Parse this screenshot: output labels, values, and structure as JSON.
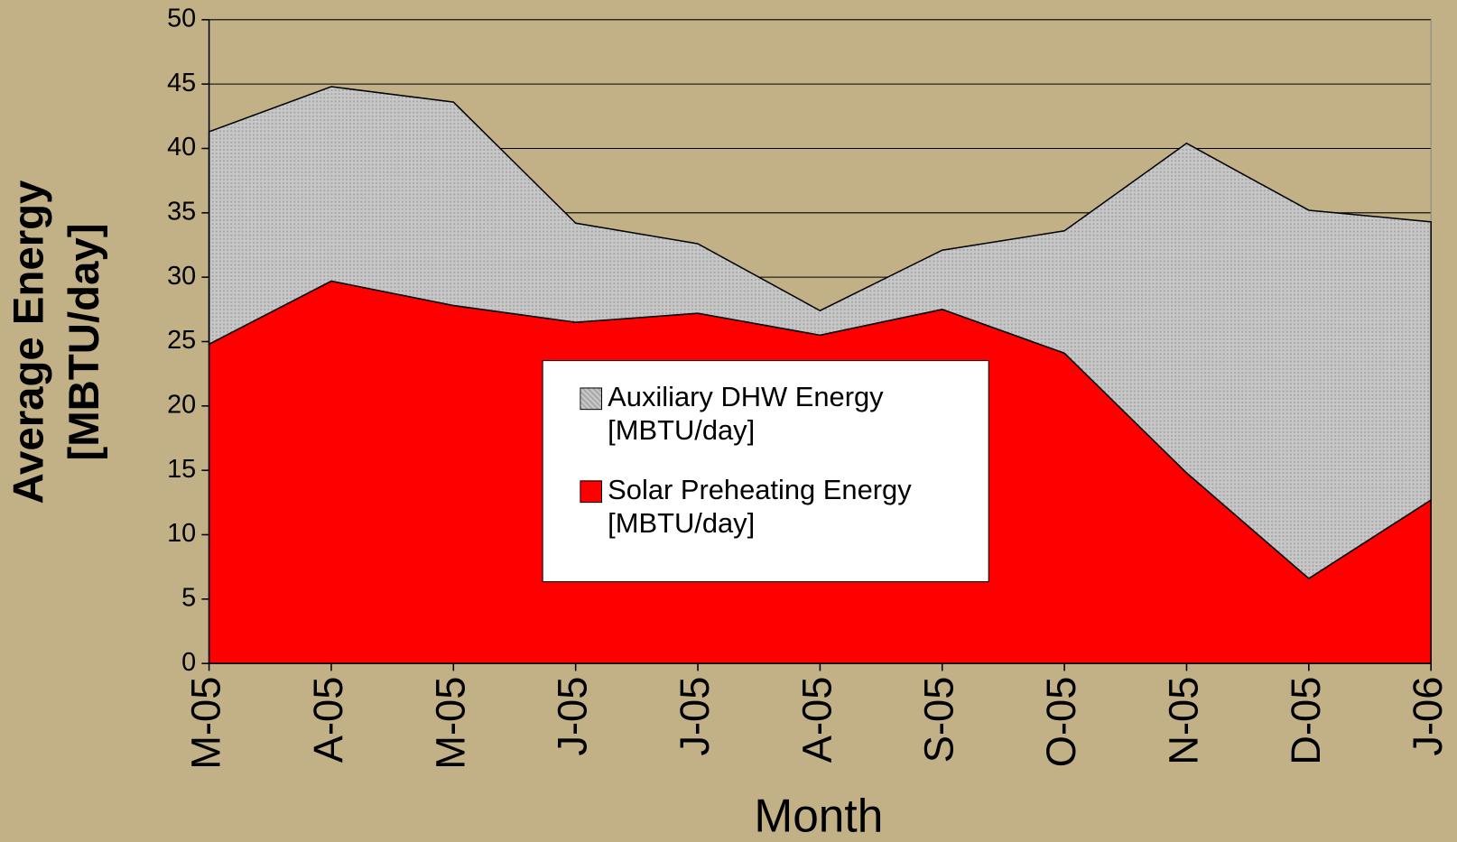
{
  "chart_data": {
    "type": "area",
    "stacked": true,
    "x_label": "Month",
    "y_label": "Average Energy [MBTU/day]",
    "categories": [
      "M-05",
      "A-05",
      "M-05",
      "J-05",
      "J-05",
      "A-05",
      "S-05",
      "O-05",
      "N-05",
      "D-05",
      "J-06"
    ],
    "series": [
      {
        "name": "Auxiliary DHW Energy [MBTU/day]",
        "color": "#c0c0c0",
        "values": [
          16.5,
          15.1,
          15.8,
          7.7,
          5.4,
          1.9,
          4.6,
          9.5,
          25.6,
          28.6,
          21.6
        ]
      },
      {
        "name": "Solar Preheating Energy [MBTU/day]",
        "color": "#ff0000",
        "values": [
          24.8,
          29.7,
          27.8,
          26.5,
          27.2,
          25.5,
          27.5,
          24.1,
          14.8,
          6.6,
          12.7
        ]
      }
    ],
    "ylim": [
      0,
      50
    ],
    "yticks": [
      0,
      5,
      10,
      15,
      20,
      25,
      30,
      35,
      40,
      45,
      50
    ],
    "grid": true
  }
}
